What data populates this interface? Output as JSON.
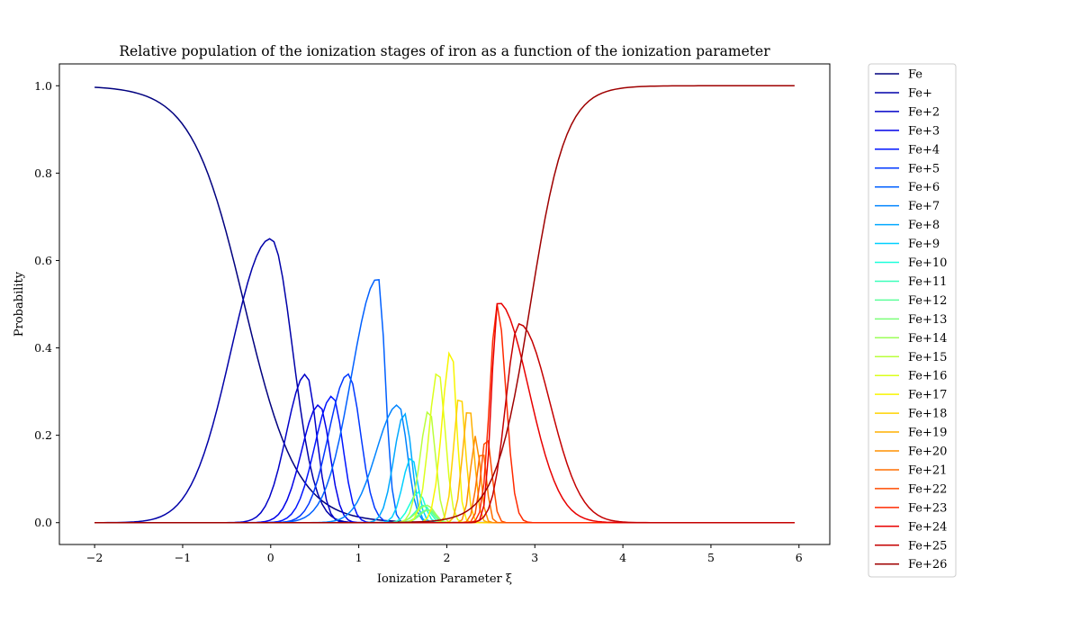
{
  "chart_data": {
    "type": "line",
    "title": "Relative population of the ionization stages of iron as a function of the ionization parameter",
    "xlabel": "Ionization Parameter ξ",
    "ylabel": "Probability",
    "xlim": [
      -2.4,
      6.35
    ],
    "ylim": [
      -0.05,
      1.05
    ],
    "xticks": [
      -2,
      -1,
      0,
      1,
      2,
      3,
      4,
      5,
      6
    ],
    "yticks": [
      0.0,
      0.2,
      0.4,
      0.6,
      0.8,
      1.0
    ],
    "grid": false,
    "legend_position": "outside-right",
    "x_range": [
      -2.0,
      5.95
    ],
    "series": [
      {
        "name": "Fe",
        "color": "#00007f",
        "shape": "sigmoid-down",
        "center": -0.3,
        "width": 0.3
      },
      {
        "name": "Fe+",
        "color": "#0000a8",
        "shape": "peak",
        "peak_x": 0.0,
        "peak_y": 0.65,
        "left_width": 0.45,
        "right_width": 0.25
      },
      {
        "name": "Fe+2",
        "color": "#0000c8",
        "shape": "peak",
        "peak_x": 0.4,
        "peak_y": 0.34,
        "left_width": 0.22,
        "right_width": 0.12
      },
      {
        "name": "Fe+3",
        "color": "#0000e8",
        "shape": "peak",
        "peak_x": 0.55,
        "peak_y": 0.27,
        "left_width": 0.2,
        "right_width": 0.12
      },
      {
        "name": "Fe+4",
        "color": "#0014ff",
        "shape": "peak",
        "peak_x": 0.7,
        "peak_y": 0.29,
        "left_width": 0.2,
        "right_width": 0.12
      },
      {
        "name": "Fe+5",
        "color": "#0038ff",
        "shape": "peak",
        "peak_x": 0.88,
        "peak_y": 0.34,
        "left_width": 0.22,
        "right_width": 0.14
      },
      {
        "name": "Fe+6",
        "color": "#0060ff",
        "shape": "peak",
        "peak_x": 1.22,
        "peak_y": 0.56,
        "left_width": 0.3,
        "right_width": 0.08
      },
      {
        "name": "Fe+7",
        "color": "#0084ff",
        "shape": "peak",
        "peak_x": 1.45,
        "peak_y": 0.27,
        "left_width": 0.25,
        "right_width": 0.1
      },
      {
        "name": "Fe+8",
        "color": "#00a8ff",
        "shape": "peak",
        "peak_x": 1.52,
        "peak_y": 0.25,
        "left_width": 0.12,
        "right_width": 0.08
      },
      {
        "name": "Fe+9",
        "color": "#00d0ff",
        "shape": "peak",
        "peak_x": 1.6,
        "peak_y": 0.15,
        "left_width": 0.1,
        "right_width": 0.07
      },
      {
        "name": "Fe+10",
        "color": "#1cffdb",
        "shape": "peak",
        "peak_x": 1.68,
        "peak_y": 0.07,
        "left_width": 0.1,
        "right_width": 0.07
      },
      {
        "name": "Fe+11",
        "color": "#3cffba",
        "shape": "peak",
        "peak_x": 1.74,
        "peak_y": 0.04,
        "left_width": 0.1,
        "right_width": 0.07
      },
      {
        "name": "Fe+12",
        "color": "#5cff9a",
        "shape": "peak",
        "peak_x": 1.78,
        "peak_y": 0.03,
        "left_width": 0.1,
        "right_width": 0.07
      },
      {
        "name": "Fe+13",
        "color": "#7cff79",
        "shape": "peak",
        "peak_x": 1.8,
        "peak_y": 0.03,
        "left_width": 0.1,
        "right_width": 0.07
      },
      {
        "name": "Fe+14",
        "color": "#9cff59",
        "shape": "peak",
        "peak_x": 1.78,
        "peak_y": 0.04,
        "left_width": 0.12,
        "right_width": 0.08
      },
      {
        "name": "Fe+15",
        "color": "#baff3c",
        "shape": "peak",
        "peak_x": 1.8,
        "peak_y": 0.26,
        "left_width": 0.1,
        "right_width": 0.07
      },
      {
        "name": "Fe+16",
        "color": "#dbff1c",
        "shape": "peak",
        "peak_x": 1.9,
        "peak_y": 0.35,
        "left_width": 0.1,
        "right_width": 0.08
      },
      {
        "name": "Fe+17",
        "color": "#f8f500",
        "shape": "peak",
        "peak_x": 2.05,
        "peak_y": 0.4,
        "left_width": 0.1,
        "right_width": 0.06
      },
      {
        "name": "Fe+18",
        "color": "#ffd300",
        "shape": "peak",
        "peak_x": 2.15,
        "peak_y": 0.3,
        "left_width": 0.07,
        "right_width": 0.06
      },
      {
        "name": "Fe+19",
        "color": "#ffb100",
        "shape": "peak",
        "peak_x": 2.25,
        "peak_y": 0.27,
        "left_width": 0.07,
        "right_width": 0.06
      },
      {
        "name": "Fe+20",
        "color": "#ff9000",
        "shape": "peak",
        "peak_x": 2.33,
        "peak_y": 0.2,
        "left_width": 0.06,
        "right_width": 0.05
      },
      {
        "name": "Fe+21",
        "color": "#ff6e00",
        "shape": "peak",
        "peak_x": 2.4,
        "peak_y": 0.17,
        "left_width": 0.06,
        "right_width": 0.05
      },
      {
        "name": "Fe+22",
        "color": "#ff4c00",
        "shape": "peak",
        "peak_x": 2.45,
        "peak_y": 0.2,
        "left_width": 0.06,
        "right_width": 0.06
      },
      {
        "name": "Fe+23",
        "color": "#ff2a00",
        "shape": "peak",
        "peak_x": 2.57,
        "peak_y": 0.5,
        "left_width": 0.08,
        "right_width": 0.1
      },
      {
        "name": "Fe+24",
        "color": "#e80000",
        "shape": "peak",
        "peak_x": 2.58,
        "peak_y": 0.505,
        "left_width": 0.07,
        "right_width": 0.35
      },
      {
        "name": "Fe+25",
        "color": "#c40000",
        "shape": "peak",
        "peak_x": 2.82,
        "peak_y": 0.455,
        "left_width": 0.15,
        "right_width": 0.35
      },
      {
        "name": "Fe+26",
        "color": "#9f0000",
        "shape": "sigmoid-up",
        "center": 2.95,
        "width": 0.2
      }
    ]
  }
}
